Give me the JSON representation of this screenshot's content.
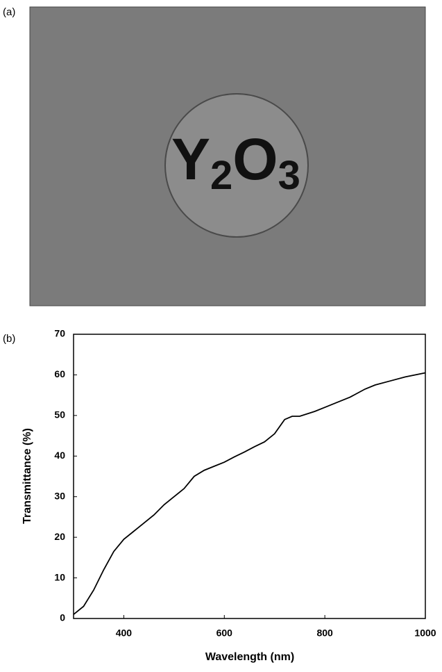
{
  "panel_a": {
    "label": "(a)",
    "text_parts": [
      "Y",
      "2",
      "O",
      "3"
    ]
  },
  "chart_data": {
    "type": "line",
    "panel_label": "(b)",
    "x_label": "Wavelength (nm)",
    "y_label": "Transmittance (%)",
    "x": [
      300,
      320,
      340,
      360,
      380,
      400,
      420,
      440,
      460,
      480,
      500,
      520,
      540,
      560,
      580,
      600,
      620,
      640,
      660,
      680,
      700,
      720,
      735,
      750,
      780,
      800,
      820,
      850,
      880,
      900,
      930,
      960,
      1000
    ],
    "series": [
      {
        "color": "#000000",
        "values": [
          1,
          3,
          7,
          12,
          16.5,
          19.5,
          21.5,
          23.5,
          25.5,
          28,
          30,
          32,
          35,
          36.5,
          37.5,
          38.5,
          39.8,
          41,
          42.3,
          43.5,
          45.5,
          49,
          49.8,
          49.8,
          51,
          52,
          53,
          54.5,
          56.5,
          57.5,
          58.5,
          59.5,
          60.5
        ]
      }
    ],
    "xlim": [
      300,
      1000
    ],
    "ylim": [
      0,
      70
    ],
    "xticks": [
      400,
      600,
      800,
      1000
    ],
    "yticks": [
      0,
      10,
      20,
      30,
      40,
      50,
      60,
      70
    ],
    "grid": false
  }
}
